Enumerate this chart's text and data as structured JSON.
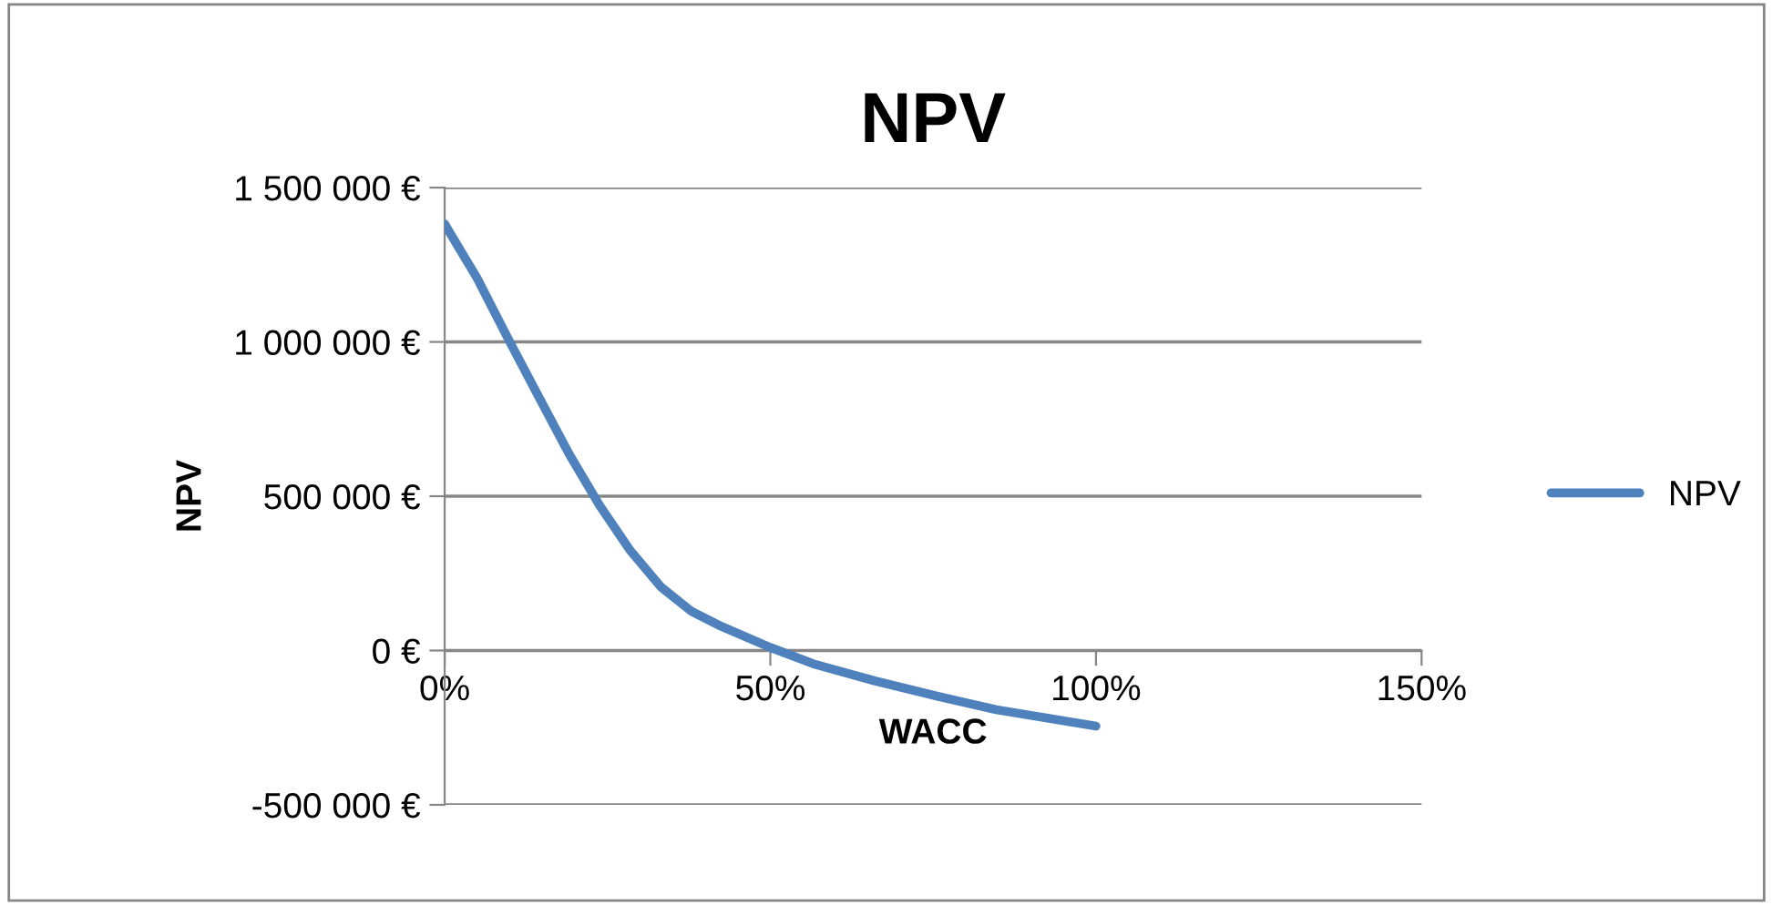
{
  "chart_data": {
    "type": "line",
    "title": "NPV",
    "xlabel": "WACC",
    "ylabel": "NPV",
    "x": [
      0,
      0.05,
      0.0975,
      0.144,
      0.191,
      0.238,
      0.285,
      0.332,
      0.379,
      0.425,
      0.5,
      0.566,
      0.66,
      0.754,
      0.847,
      1.0
    ],
    "series": [
      {
        "name": "NPV",
        "color": "#4f81bd",
        "values": [
          1382000,
          1206000,
          1010000,
          824000,
          637000,
          470000,
          324000,
          206000,
          127000,
          78000,
          10000,
          -43000,
          -98000,
          -147000,
          -192000,
          -245000
        ]
      }
    ],
    "xlim": [
      0,
      1.5
    ],
    "xticks": [
      {
        "value": 0,
        "label": "0%"
      },
      {
        "value": 0.5,
        "label": "50%"
      },
      {
        "value": 1.0,
        "label": "100%"
      },
      {
        "value": 1.5,
        "label": "150%"
      }
    ],
    "ylim": [
      -500000,
      1500000
    ],
    "yticks": [
      {
        "value": -500000,
        "label": "-500 000 €"
      },
      {
        "value": 0,
        "label": "0 €"
      },
      {
        "value": 500000,
        "label": "500 000 €"
      },
      {
        "value": 1000000,
        "label": "1 000 000 €"
      },
      {
        "value": 1500000,
        "label": "1 500 000 €"
      }
    ],
    "grid": "y",
    "legend": "right",
    "marker": "none",
    "line_style": "solid"
  }
}
